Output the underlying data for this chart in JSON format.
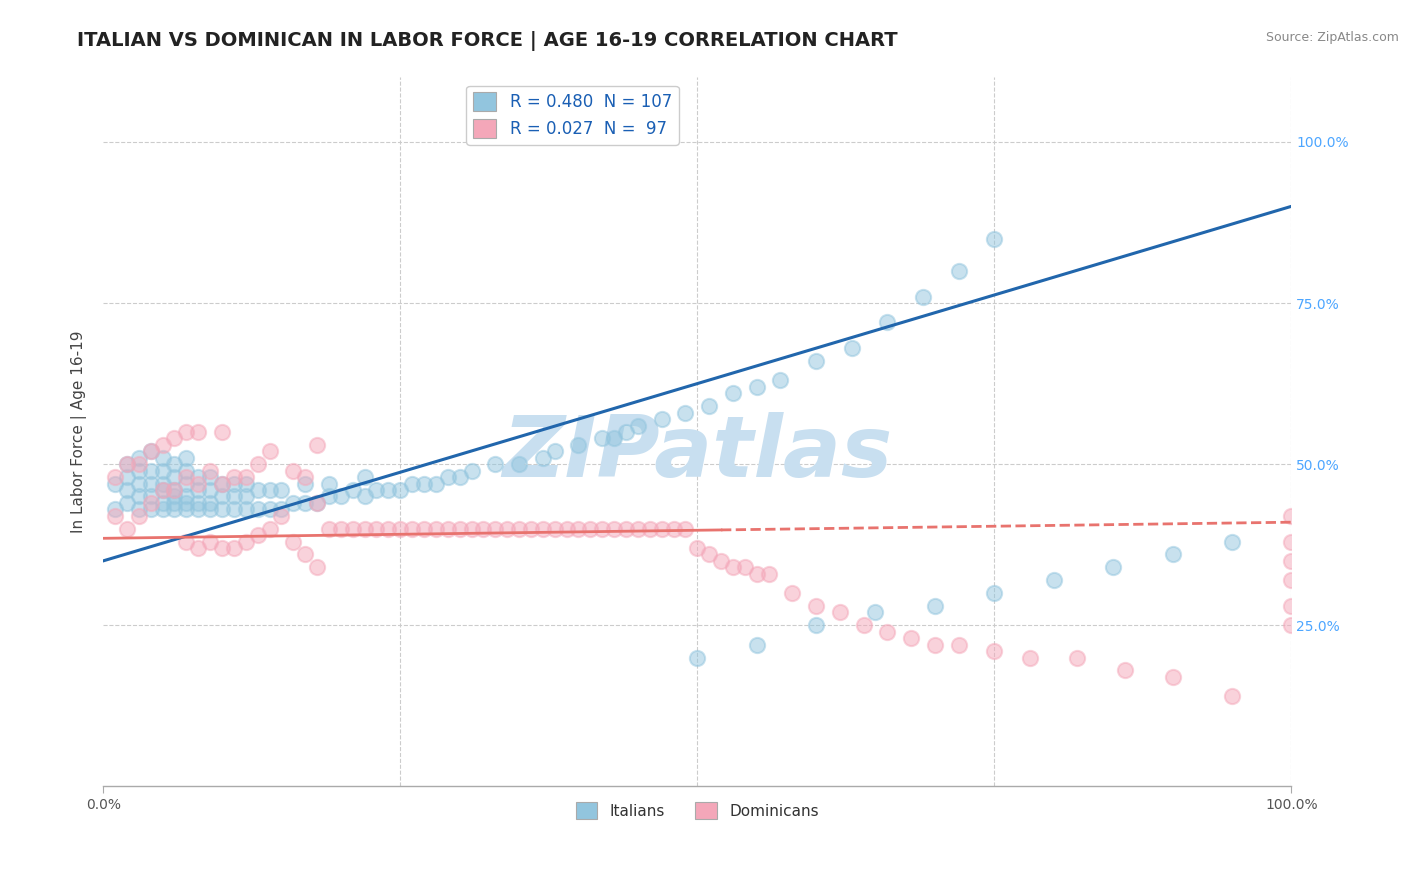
{
  "title": "ITALIAN VS DOMINICAN IN LABOR FORCE | AGE 16-19 CORRELATION CHART",
  "source": "Source: ZipAtlas.com",
  "ylabel": "In Labor Force | Age 16-19",
  "xlim": [
    0.0,
    1.0
  ],
  "ylim": [
    0.0,
    1.1
  ],
  "italian_R": 0.48,
  "italian_N": 107,
  "dominican_R": 0.027,
  "dominican_N": 97,
  "italian_color": "#92c5de",
  "dominican_color": "#f4a7b9",
  "trend_italian_color": "#2166ac",
  "trend_dominican_color": "#e8736e",
  "watermark_color": "#c8dff0",
  "background_color": "#ffffff",
  "grid_color": "#cccccc",
  "title_fontsize": 14,
  "axis_label_fontsize": 11,
  "tick_fontsize": 10,
  "right_tick_color": "#4da6ff",
  "italian_x": [
    0.01,
    0.01,
    0.02,
    0.02,
    0.02,
    0.02,
    0.03,
    0.03,
    0.03,
    0.03,
    0.03,
    0.04,
    0.04,
    0.04,
    0.04,
    0.04,
    0.05,
    0.05,
    0.05,
    0.05,
    0.05,
    0.05,
    0.06,
    0.06,
    0.06,
    0.06,
    0.06,
    0.06,
    0.07,
    0.07,
    0.07,
    0.07,
    0.07,
    0.07,
    0.08,
    0.08,
    0.08,
    0.08,
    0.09,
    0.09,
    0.09,
    0.09,
    0.1,
    0.1,
    0.1,
    0.11,
    0.11,
    0.11,
    0.12,
    0.12,
    0.12,
    0.13,
    0.13,
    0.14,
    0.14,
    0.15,
    0.15,
    0.16,
    0.17,
    0.17,
    0.18,
    0.19,
    0.19,
    0.2,
    0.21,
    0.22,
    0.22,
    0.23,
    0.24,
    0.25,
    0.26,
    0.27,
    0.28,
    0.29,
    0.3,
    0.31,
    0.33,
    0.35,
    0.37,
    0.38,
    0.4,
    0.42,
    0.43,
    0.44,
    0.45,
    0.47,
    0.49,
    0.51,
    0.53,
    0.55,
    0.57,
    0.6,
    0.63,
    0.66,
    0.69,
    0.72,
    0.75,
    0.5,
    0.55,
    0.6,
    0.65,
    0.7,
    0.75,
    0.8,
    0.85,
    0.9,
    0.95
  ],
  "italian_y": [
    0.43,
    0.47,
    0.44,
    0.46,
    0.48,
    0.5,
    0.43,
    0.45,
    0.47,
    0.49,
    0.51,
    0.43,
    0.45,
    0.47,
    0.49,
    0.52,
    0.43,
    0.44,
    0.46,
    0.47,
    0.49,
    0.51,
    0.43,
    0.44,
    0.45,
    0.46,
    0.48,
    0.5,
    0.43,
    0.44,
    0.45,
    0.47,
    0.49,
    0.51,
    0.43,
    0.44,
    0.46,
    0.48,
    0.43,
    0.44,
    0.46,
    0.48,
    0.43,
    0.45,
    0.47,
    0.43,
    0.45,
    0.47,
    0.43,
    0.45,
    0.47,
    0.43,
    0.46,
    0.43,
    0.46,
    0.43,
    0.46,
    0.44,
    0.44,
    0.47,
    0.44,
    0.45,
    0.47,
    0.45,
    0.46,
    0.45,
    0.48,
    0.46,
    0.46,
    0.46,
    0.47,
    0.47,
    0.47,
    0.48,
    0.48,
    0.49,
    0.5,
    0.5,
    0.51,
    0.52,
    0.53,
    0.54,
    0.54,
    0.55,
    0.56,
    0.57,
    0.58,
    0.59,
    0.61,
    0.62,
    0.63,
    0.66,
    0.68,
    0.72,
    0.76,
    0.8,
    0.85,
    0.2,
    0.22,
    0.25,
    0.27,
    0.28,
    0.3,
    0.32,
    0.34,
    0.36,
    0.38
  ],
  "dominican_x": [
    0.01,
    0.01,
    0.02,
    0.02,
    0.03,
    0.03,
    0.04,
    0.04,
    0.05,
    0.05,
    0.06,
    0.06,
    0.07,
    0.07,
    0.07,
    0.08,
    0.08,
    0.08,
    0.09,
    0.09,
    0.1,
    0.1,
    0.1,
    0.11,
    0.11,
    0.12,
    0.12,
    0.13,
    0.13,
    0.14,
    0.14,
    0.15,
    0.16,
    0.16,
    0.17,
    0.17,
    0.18,
    0.18,
    0.18,
    0.19,
    0.2,
    0.21,
    0.22,
    0.23,
    0.24,
    0.25,
    0.26,
    0.27,
    0.28,
    0.29,
    0.3,
    0.31,
    0.32,
    0.33,
    0.34,
    0.35,
    0.36,
    0.37,
    0.38,
    0.39,
    0.4,
    0.41,
    0.42,
    0.43,
    0.44,
    0.45,
    0.46,
    0.47,
    0.48,
    0.49,
    0.5,
    0.51,
    0.52,
    0.53,
    0.54,
    0.55,
    0.56,
    0.58,
    0.6,
    0.62,
    0.64,
    0.66,
    0.68,
    0.7,
    0.72,
    0.75,
    0.78,
    0.82,
    0.86,
    0.9,
    0.95,
    1.0,
    1.0,
    1.0,
    1.0,
    1.0,
    1.0
  ],
  "dominican_y": [
    0.42,
    0.48,
    0.4,
    0.5,
    0.42,
    0.5,
    0.44,
    0.52,
    0.46,
    0.53,
    0.46,
    0.54,
    0.38,
    0.48,
    0.55,
    0.37,
    0.47,
    0.55,
    0.38,
    0.49,
    0.37,
    0.47,
    0.55,
    0.37,
    0.48,
    0.38,
    0.48,
    0.39,
    0.5,
    0.4,
    0.52,
    0.42,
    0.38,
    0.49,
    0.36,
    0.48,
    0.34,
    0.44,
    0.53,
    0.4,
    0.4,
    0.4,
    0.4,
    0.4,
    0.4,
    0.4,
    0.4,
    0.4,
    0.4,
    0.4,
    0.4,
    0.4,
    0.4,
    0.4,
    0.4,
    0.4,
    0.4,
    0.4,
    0.4,
    0.4,
    0.4,
    0.4,
    0.4,
    0.4,
    0.4,
    0.4,
    0.4,
    0.4,
    0.4,
    0.4,
    0.37,
    0.36,
    0.35,
    0.34,
    0.34,
    0.33,
    0.33,
    0.3,
    0.28,
    0.27,
    0.25,
    0.24,
    0.23,
    0.22,
    0.22,
    0.21,
    0.2,
    0.2,
    0.18,
    0.17,
    0.14,
    0.42,
    0.38,
    0.35,
    0.32,
    0.28,
    0.25
  ],
  "italian_trend_x": [
    0.0,
    1.0
  ],
  "italian_trend_y": [
    0.35,
    0.9
  ],
  "dominican_trend_x": [
    0.0,
    1.0
  ],
  "dominican_trend_y": [
    0.385,
    0.41
  ]
}
